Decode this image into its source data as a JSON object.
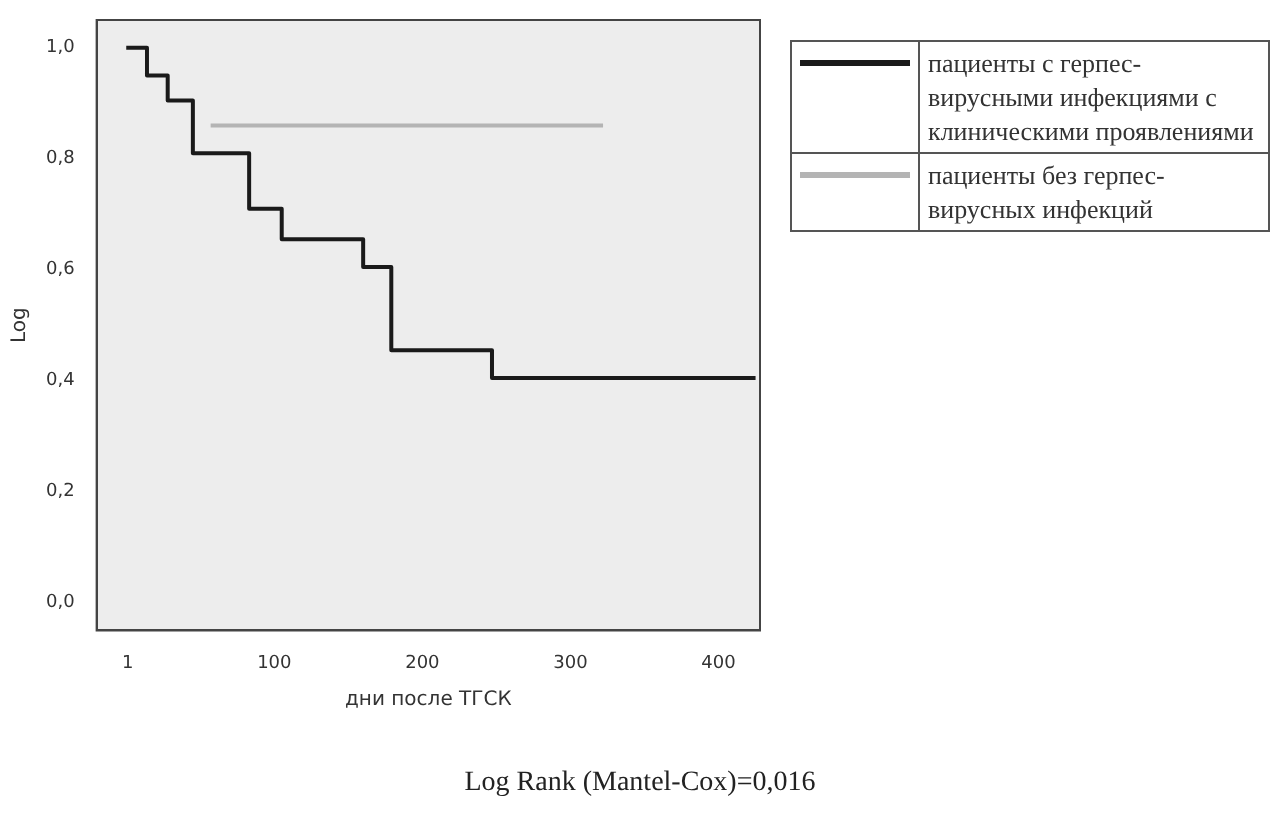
{
  "chart_data": {
    "type": "step",
    "xlabel": "дни после ТГСК",
    "ylabel": "Log",
    "xlim": [
      -20,
      428
    ],
    "xticks": [
      1,
      100,
      200,
      300,
      400
    ],
    "ylim": [
      -0.05,
      1.05
    ],
    "yticks": [
      {
        "value": 0,
        "label": "0,0"
      },
      {
        "value": 0.2,
        "label": "0,2"
      },
      {
        "value": 0.4,
        "label": "0,4"
      },
      {
        "value": 0.6,
        "label": "0,6"
      },
      {
        "value": 0.8,
        "label": "0,8"
      },
      {
        "value": 1,
        "label": "1,0"
      }
    ],
    "series": [
      {
        "name": "пациенты с герпес-вирусными инфекциями с клиническими проявлениями",
        "color": "#1a1a1a",
        "x": [
          0,
          14,
          28,
          45,
          83,
          105,
          160,
          179,
          247,
          425
        ],
        "values": [
          1,
          0.95,
          0.905,
          0.81,
          0.71,
          0.655,
          0.605,
          0.455,
          0.405,
          0.405
        ]
      },
      {
        "name": "пациенты без герпес-вирусных инфекций",
        "color": "#b4b4b4",
        "x": [
          57,
          322
        ],
        "values": [
          0.86,
          0.86
        ]
      }
    ],
    "marker": "none",
    "grid": false,
    "legend": "right",
    "annotations": [
      "Log Rank (Mantel-Cox)=0,016"
    ]
  }
}
